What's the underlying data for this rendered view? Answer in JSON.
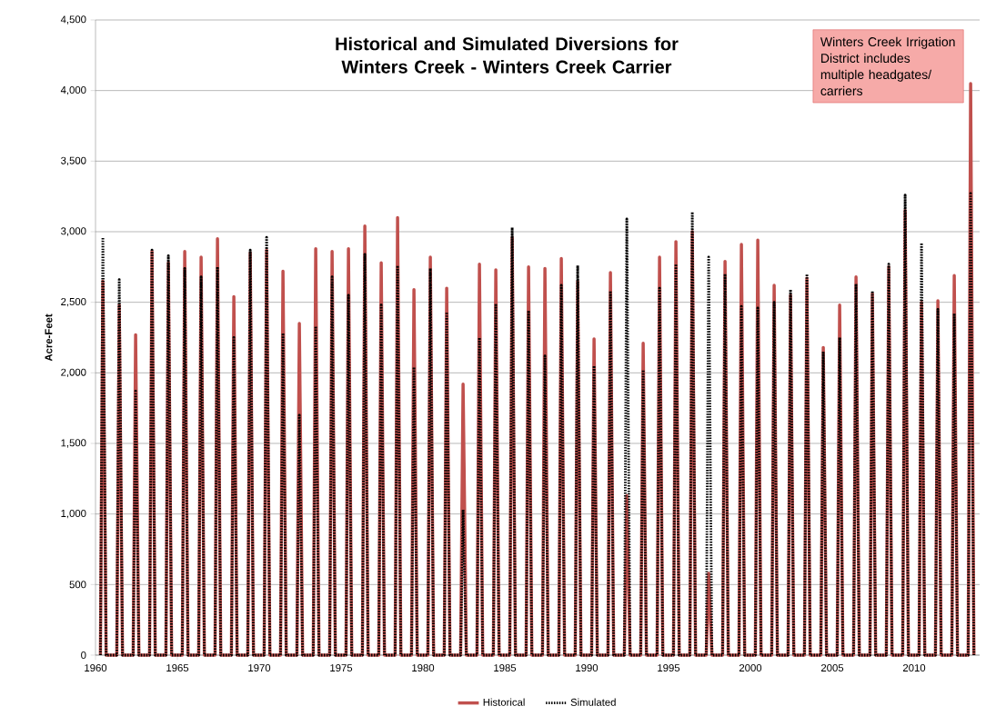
{
  "chart_data": {
    "type": "line",
    "title": "Historical and Simulated Diversions for Winters Creek - Winters Creek Carrier",
    "ylabel": "Acre-Feet",
    "annotations": [
      "Winters Creek Irrigation District includes multiple headgates/ carriers"
    ],
    "x": [
      1960.3,
      1960.45,
      1960.65,
      1961.3,
      1961.45,
      1961.65,
      1962.3,
      1962.45,
      1962.65,
      1963.3,
      1963.45,
      1963.65,
      1964.3,
      1964.45,
      1964.65,
      1965.3,
      1965.45,
      1965.65,
      1966.3,
      1966.45,
      1966.65,
      1967.3,
      1967.45,
      1967.65,
      1968.3,
      1968.45,
      1968.65,
      1969.3,
      1969.45,
      1969.65,
      1970.3,
      1970.45,
      1970.65,
      1971.3,
      1971.45,
      1971.65,
      1972.3,
      1972.45,
      1972.65,
      1973.3,
      1973.45,
      1973.65,
      1974.3,
      1974.45,
      1974.65,
      1975.3,
      1975.45,
      1975.65,
      1976.3,
      1976.45,
      1976.65,
      1977.3,
      1977.45,
      1977.65,
      1978.3,
      1978.45,
      1978.65,
      1979.3,
      1979.45,
      1979.65,
      1980.3,
      1980.45,
      1980.65,
      1981.3,
      1981.45,
      1981.65,
      1982.3,
      1982.45,
      1982.65,
      1983.3,
      1983.45,
      1983.65,
      1984.3,
      1984.45,
      1984.65,
      1985.3,
      1985.45,
      1985.65,
      1986.3,
      1986.45,
      1986.65,
      1987.3,
      1987.45,
      1987.65,
      1988.3,
      1988.45,
      1988.65,
      1989.3,
      1989.45,
      1989.65,
      1990.3,
      1990.45,
      1990.65,
      1991.3,
      1991.45,
      1991.65,
      1992.3,
      1992.45,
      1992.65,
      1993.3,
      1993.45,
      1993.65,
      1994.3,
      1994.45,
      1994.65,
      1995.3,
      1995.45,
      1995.65,
      1996.3,
      1996.45,
      1996.65,
      1997.3,
      1997.45,
      1997.65,
      1998.3,
      1998.45,
      1998.65,
      1999.3,
      1999.45,
      1999.65,
      2000.3,
      2000.45,
      2000.65,
      2001.3,
      2001.45,
      2001.65,
      2002.3,
      2002.45,
      2002.65,
      2003.3,
      2003.45,
      2003.65,
      2004.3,
      2004.45,
      2004.65,
      2005.3,
      2005.45,
      2005.65,
      2006.3,
      2006.45,
      2006.65,
      2007.3,
      2007.45,
      2007.65,
      2008.3,
      2008.45,
      2008.65,
      2009.3,
      2009.45,
      2009.65,
      2010.3,
      2010.45,
      2010.65,
      2011.3,
      2011.45,
      2011.65,
      2012.3,
      2012.45,
      2012.65,
      2013.3,
      2013.45,
      2013.65
    ],
    "series": [
      {
        "name": "Historical",
        "color": "#c0504d",
        "line_style": "solid",
        "values": [
          0,
          2650,
          0,
          0,
          2480,
          0,
          0,
          2270,
          0,
          0,
          2860,
          0,
          0,
          2780,
          0,
          0,
          2860,
          0,
          0,
          2820,
          0,
          0,
          2950,
          0,
          0,
          2540,
          0,
          0,
          2850,
          0,
          0,
          2870,
          0,
          0,
          2720,
          0,
          0,
          2350,
          0,
          0,
          2880,
          0,
          0,
          2860,
          0,
          0,
          2880,
          0,
          0,
          3040,
          0,
          0,
          2780,
          0,
          0,
          3100,
          0,
          0,
          2590,
          0,
          0,
          2820,
          0,
          0,
          2600,
          0,
          0,
          1920,
          0,
          0,
          2770,
          0,
          0,
          2730,
          0,
          0,
          2960,
          0,
          0,
          2750,
          0,
          0,
          2740,
          0,
          0,
          2810,
          0,
          0,
          2650,
          0,
          0,
          2240,
          0,
          0,
          2710,
          0,
          0,
          1130,
          0,
          0,
          2210,
          0,
          0,
          2820,
          0,
          0,
          2930,
          0,
          0,
          3000,
          0,
          0,
          580,
          0,
          0,
          2790,
          0,
          0,
          2910,
          0,
          0,
          2940,
          0,
          0,
          2620,
          0,
          0,
          2550,
          0,
          0,
          2670,
          0,
          0,
          2180,
          0,
          0,
          2480,
          0,
          0,
          2680,
          0,
          0,
          2560,
          0,
          0,
          2750,
          0,
          0,
          3150,
          0,
          0,
          2500,
          0,
          0,
          2510,
          0,
          0,
          2690,
          0,
          0,
          4050,
          0
        ]
      },
      {
        "name": "Simulated",
        "color": "#000000",
        "line_style": "dotted",
        "values": [
          0,
          2960,
          0,
          0,
          2660,
          0,
          0,
          1870,
          0,
          0,
          2870,
          0,
          0,
          2830,
          0,
          0,
          2740,
          0,
          0,
          2680,
          0,
          0,
          2750,
          0,
          0,
          2250,
          0,
          0,
          2870,
          0,
          0,
          2960,
          0,
          0,
          2280,
          0,
          0,
          1700,
          0,
          0,
          2330,
          0,
          0,
          2680,
          0,
          0,
          2550,
          0,
          0,
          2840,
          0,
          0,
          2480,
          0,
          0,
          2760,
          0,
          0,
          2040,
          0,
          0,
          2740,
          0,
          0,
          2430,
          0,
          0,
          1030,
          0,
          0,
          2250,
          0,
          0,
          2490,
          0,
          0,
          3030,
          0,
          0,
          2440,
          0,
          0,
          2120,
          0,
          0,
          2620,
          0,
          0,
          2760,
          0,
          0,
          2050,
          0,
          0,
          2580,
          0,
          0,
          3090,
          0,
          0,
          2020,
          0,
          0,
          2600,
          0,
          0,
          2770,
          0,
          0,
          3140,
          0,
          0,
          2820,
          0,
          0,
          2700,
          0,
          0,
          2470,
          0,
          0,
          2460,
          0,
          0,
          2500,
          0,
          0,
          2590,
          0,
          0,
          2700,
          0,
          0,
          2150,
          0,
          0,
          2250,
          0,
          0,
          2630,
          0,
          0,
          2580,
          0,
          0,
          2770,
          0,
          0,
          3260,
          0,
          0,
          2920,
          0,
          0,
          2450,
          0,
          0,
          2420,
          0,
          0,
          3270,
          0
        ]
      }
    ],
    "xlim": [
      1960,
      2014
    ],
    "xticks": [
      1960,
      1965,
      1970,
      1975,
      1980,
      1985,
      1990,
      1995,
      2000,
      2005,
      2010
    ],
    "ylim": [
      0,
      4500
    ],
    "yticks": [
      {
        "value": 0,
        "label": "0"
      },
      {
        "value": 500,
        "label": "500"
      },
      {
        "value": 1000,
        "label": "1,000"
      },
      {
        "value": 1500,
        "label": "1,500"
      },
      {
        "value": 2000,
        "label": "2,000"
      },
      {
        "value": 2500,
        "label": "2,500"
      },
      {
        "value": 3000,
        "label": "3,000"
      },
      {
        "value": 3500,
        "label": "3,500"
      },
      {
        "value": 4000,
        "label": "4,000"
      },
      {
        "value": 4500,
        "label": "4,500"
      }
    ],
    "grid": "y",
    "legend": "bottom"
  }
}
